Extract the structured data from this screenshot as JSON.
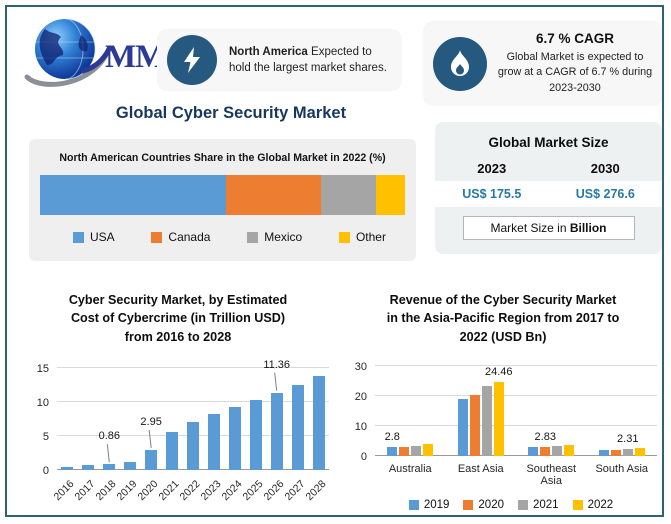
{
  "brand": {
    "logo_text": "MMR"
  },
  "header": {
    "card_north_america": {
      "bold": "North America",
      "rest": " Expected to hold the largest market shares."
    },
    "card_cagr": {
      "title": "6.7 % CAGR",
      "body": "Global Market is expected to grow at a CAGR of 6.7 % during 2023-2030"
    }
  },
  "page_title": "Global Cyber Security Market",
  "market_size": {
    "title": "Global Market Size",
    "year_left": "2023",
    "year_right": "2030",
    "value_left": "US$ 175.5",
    "value_right": "US$ 276.6",
    "note_prefix": "Market Size in ",
    "note_bold": "Billion",
    "value_color": "#2679A3"
  },
  "colors": {
    "series_blue": "#5B9BD5",
    "series_orange": "#ED7D31",
    "series_gray": "#A5A5A5",
    "series_yellow": "#FFC000",
    "icon_circle": "#25597F",
    "title_navy": "#17375E",
    "frame_border": "#2E6372"
  },
  "chart_data": [
    {
      "id": "na-share",
      "type": "bar",
      "variant": "stacked-horizontal",
      "title": "North American Countries Share in the Global Market in 2022 (%)",
      "segments": [
        {
          "label": "USA",
          "value": 51,
          "color": "#5B9BD5"
        },
        {
          "label": "Canada",
          "value": 26,
          "color": "#ED7D31"
        },
        {
          "label": "Mexico",
          "value": 15,
          "color": "#A5A5A5"
        },
        {
          "label": "Other",
          "value": 8,
          "color": "#FFC000"
        }
      ],
      "legend_position": "bottom"
    },
    {
      "id": "cybercrime-cost",
      "type": "bar",
      "title": "Cyber Security Market, by Estimated Cost of Cybercrime (in Trillion USD) from 2016 to 2028",
      "title_lines": [
        "Cyber Security Market, by Estimated",
        "Cost of Cybercrime (in Trillion USD)",
        "from 2016 to 2028"
      ],
      "categories": [
        "2016",
        "2017",
        "2018",
        "2019",
        "2020",
        "2021",
        "2022",
        "2023",
        "2024",
        "2025",
        "2026",
        "2027",
        "2028"
      ],
      "values": [
        0.45,
        0.7,
        0.86,
        1.16,
        2.95,
        5.49,
        7.08,
        8.15,
        9.22,
        10.29,
        11.36,
        12.43,
        13.82
      ],
      "bar_color": "#5B9BD5",
      "xlabel": "",
      "ylabel": "",
      "ylim": [
        0,
        15
      ],
      "yticks": [
        0,
        5,
        10,
        15
      ],
      "grid": true,
      "annotations": [
        {
          "category": "2018",
          "text": "0.86"
        },
        {
          "category": "2020",
          "text": "2.95"
        },
        {
          "category": "2026",
          "text": "11.36"
        }
      ]
    },
    {
      "id": "apac-revenue",
      "type": "bar",
      "variant": "grouped",
      "title": "Revenue of the Cyber Security Market in the Asia-Pacific Region from 2017 to 2022 (USD Bn)",
      "title_lines": [
        "Revenue of the Cyber Security Market",
        "in the Asia-Pacific Region from 2017 to",
        "2022 (USD Bn)"
      ],
      "categories": [
        "Australia",
        "East Asia",
        "Southeast Asia",
        "South Asia"
      ],
      "series": [
        {
          "name": "2019",
          "color": "#5B9BD5",
          "values": [
            2.8,
            19.0,
            2.8,
            1.9
          ]
        },
        {
          "name": "2020",
          "color": "#ED7D31",
          "values": [
            2.8,
            20.4,
            2.83,
            1.9
          ]
        },
        {
          "name": "2021",
          "color": "#A5A5A5",
          "values": [
            3.4,
            23.2,
            3.2,
            2.31
          ]
        },
        {
          "name": "2022",
          "color": "#FFC000",
          "values": [
            3.9,
            24.46,
            3.7,
            2.6
          ]
        }
      ],
      "xlabel": "",
      "ylabel": "",
      "ylim": [
        0,
        30
      ],
      "yticks": [
        0,
        10,
        20,
        30
      ],
      "grid": true,
      "legend_position": "bottom",
      "annotations": [
        {
          "category": "Australia",
          "series": "2019",
          "text": "2.8"
        },
        {
          "category": "East Asia",
          "series": "2022",
          "text": "24.46"
        },
        {
          "category": "Southeast Asia",
          "series": "2020",
          "text": "2.83"
        },
        {
          "category": "South Asia",
          "series": "2021",
          "text": "2.31"
        }
      ]
    }
  ]
}
